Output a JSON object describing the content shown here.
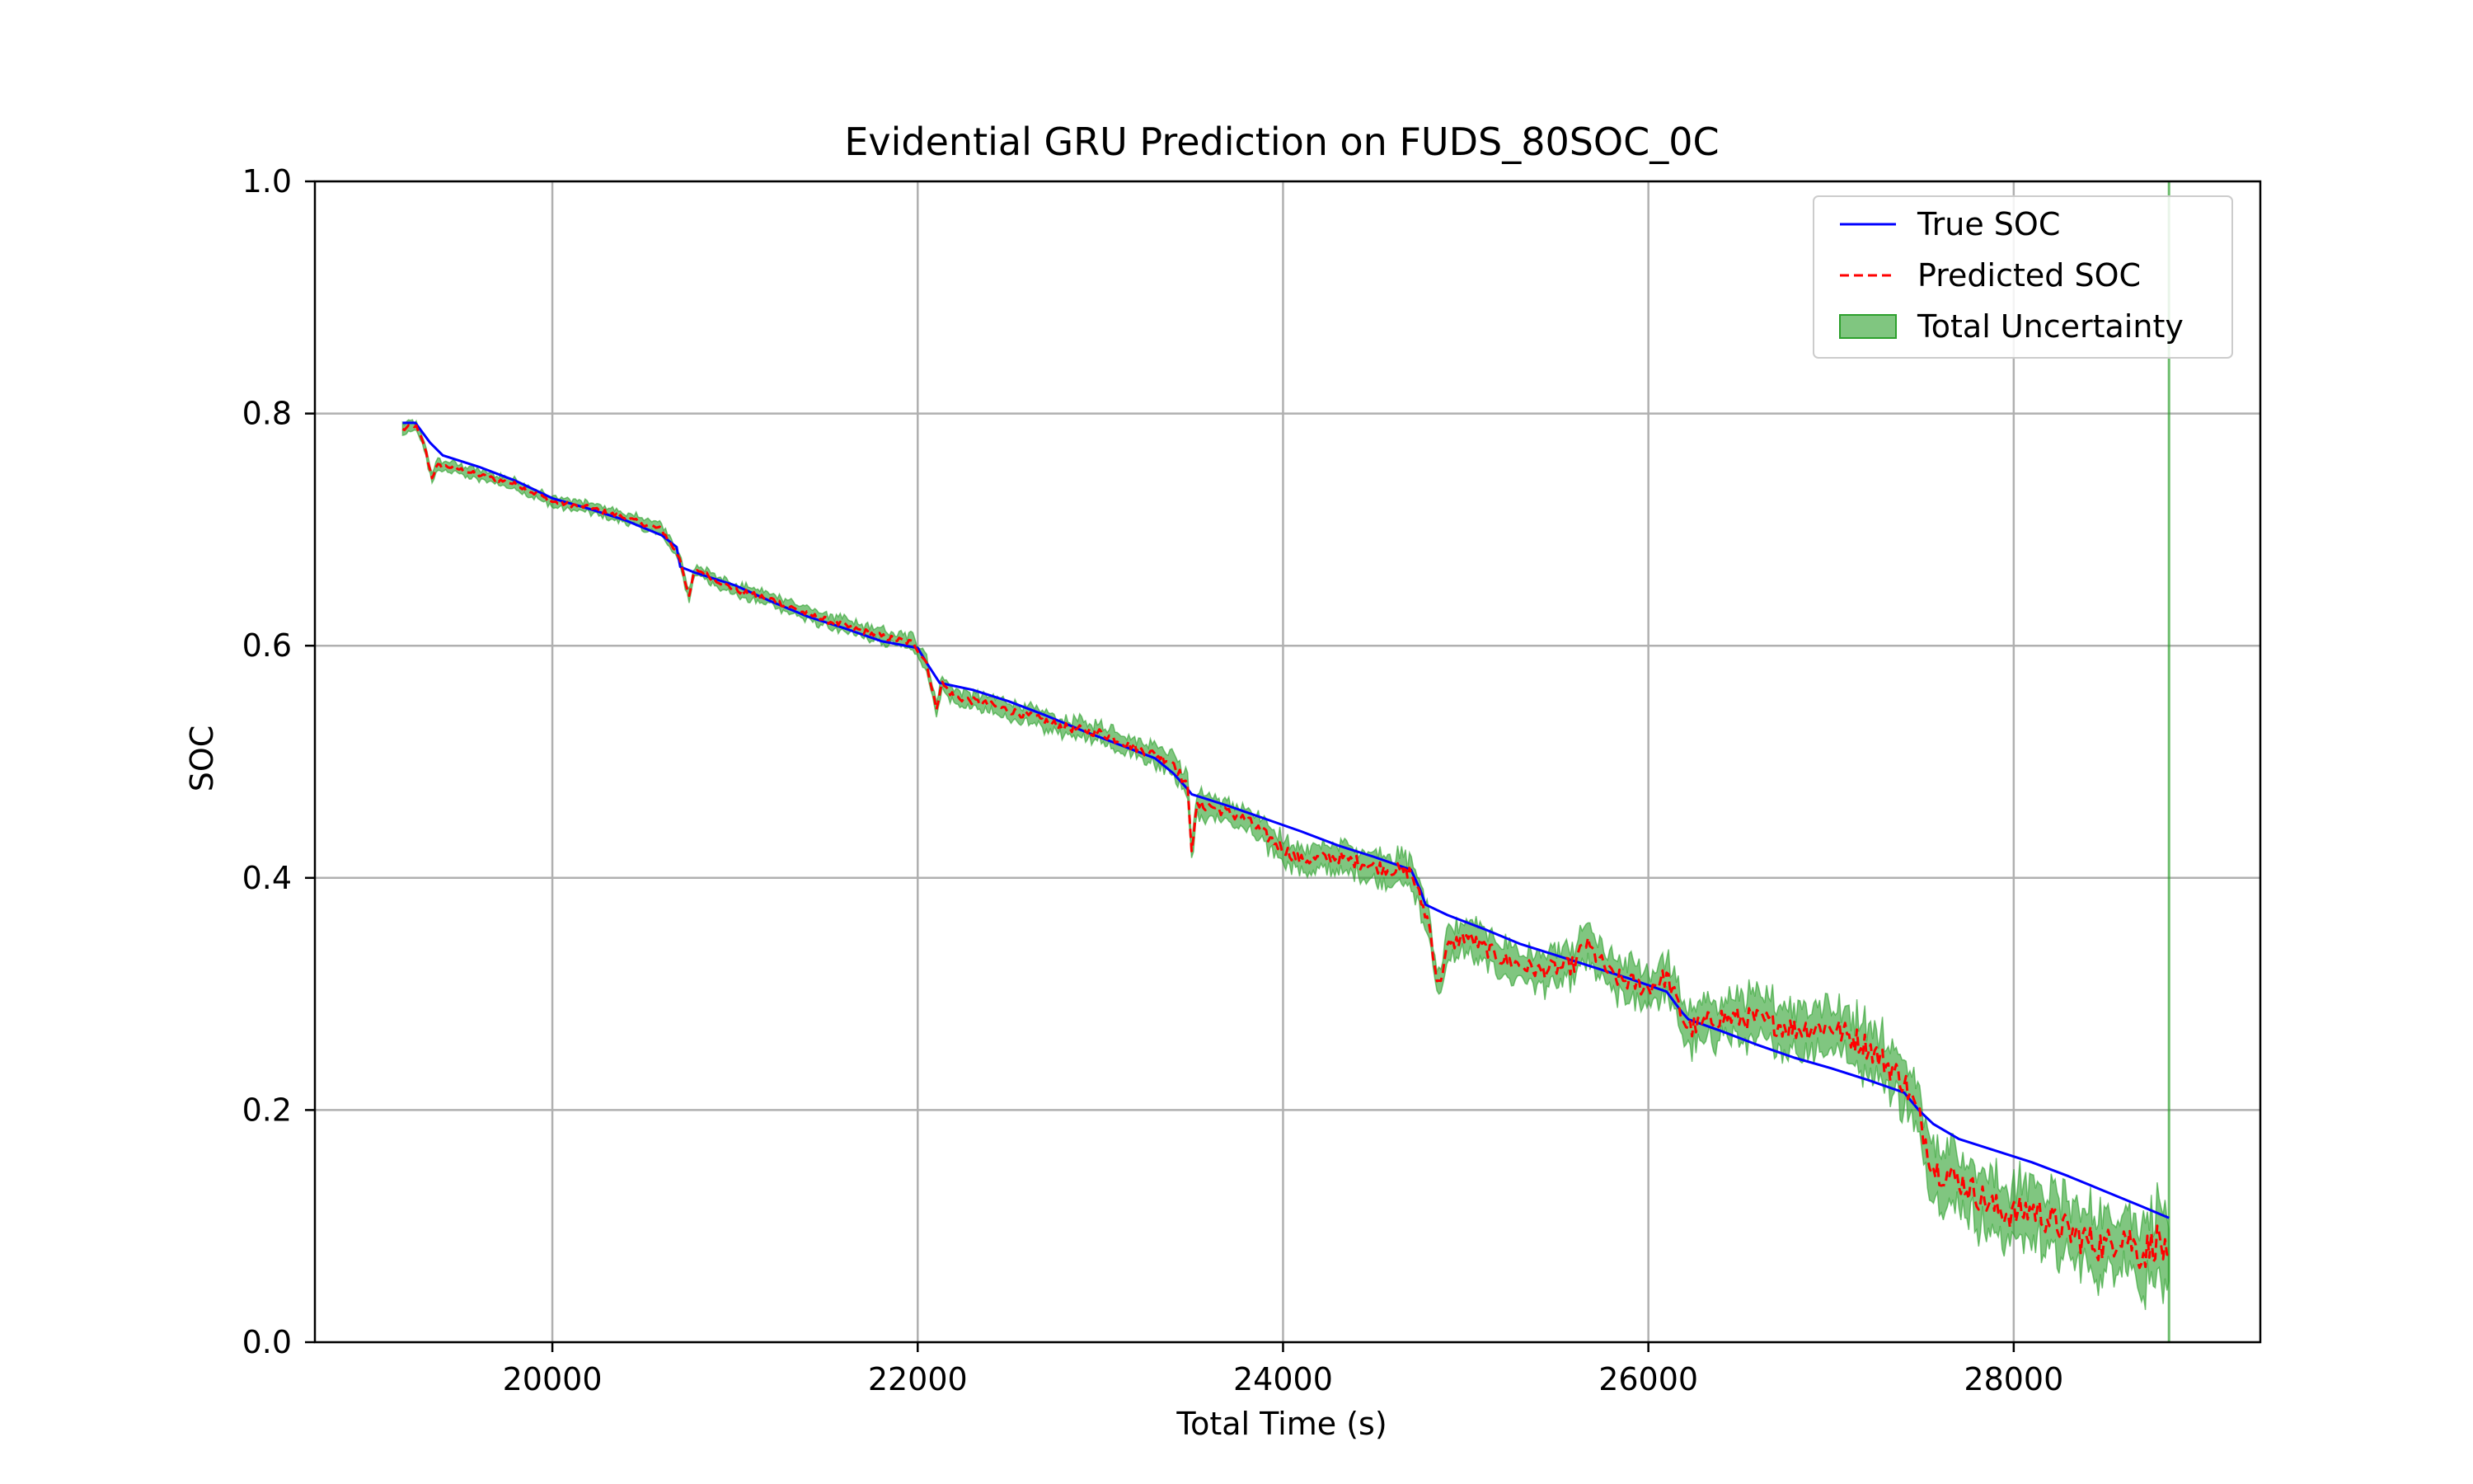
{
  "chart_data": {
    "type": "line",
    "title": "Evidential GRU Prediction on FUDS_80SOC_0C",
    "xlabel": "Total Time (s)",
    "ylabel": "SOC",
    "xlim": [
      18700,
      29350
    ],
    "ylim": [
      0.0,
      1.0
    ],
    "xticks": [
      20000,
      22000,
      24000,
      26000,
      28000
    ],
    "yticks": [
      0.0,
      0.2,
      0.4,
      0.6,
      0.8,
      1.0
    ],
    "xtick_labels": [
      "20000",
      "22000",
      "24000",
      "26000",
      "28000"
    ],
    "ytick_labels": [
      "0.0",
      "0.2",
      "0.4",
      "0.6",
      "0.8",
      "1.0"
    ],
    "grid": true,
    "legend_position": "top-right",
    "colors": {
      "true": "#0000ff",
      "pred": "#ff0000",
      "band": "#2ca02c"
    },
    "series": [
      {
        "name": "True SOC",
        "style": "solid",
        "x": [
          19180,
          19250,
          19330,
          19400,
          19600,
          19800,
          20000,
          20200,
          20400,
          20600,
          20680,
          20700,
          20780,
          21000,
          21200,
          21400,
          21600,
          21800,
          22000,
          22050,
          22120,
          22300,
          22500,
          22700,
          22900,
          23100,
          23300,
          23400,
          23480,
          23500,
          23700,
          23900,
          24100,
          24300,
          24500,
          24700,
          24750,
          24780,
          24900,
          25100,
          25300,
          25500,
          25700,
          25900,
          26100,
          26180,
          26220,
          26400,
          26600,
          26800,
          27000,
          27200,
          27400,
          27480,
          27560,
          27700,
          27900,
          28100,
          28300,
          28500,
          28700,
          28850
        ],
        "y": [
          0.792,
          0.792,
          0.775,
          0.764,
          0.754,
          0.742,
          0.727,
          0.718,
          0.708,
          0.695,
          0.685,
          0.668,
          0.663,
          0.652,
          0.638,
          0.625,
          0.615,
          0.604,
          0.598,
          0.585,
          0.568,
          0.562,
          0.552,
          0.54,
          0.527,
          0.515,
          0.503,
          0.49,
          0.476,
          0.472,
          0.462,
          0.451,
          0.44,
          0.428,
          0.418,
          0.407,
          0.39,
          0.377,
          0.368,
          0.356,
          0.343,
          0.333,
          0.323,
          0.313,
          0.302,
          0.285,
          0.278,
          0.268,
          0.256,
          0.245,
          0.236,
          0.226,
          0.215,
          0.2,
          0.188,
          0.175,
          0.165,
          0.155,
          0.143,
          0.13,
          0.117,
          0.107
        ]
      },
      {
        "name": "Predicted SOC",
        "style": "dashed",
        "x": [
          19180,
          19250,
          19300,
          19340,
          19370,
          19450,
          19600,
          19800,
          20000,
          20200,
          20400,
          20600,
          20700,
          20750,
          20770,
          20800,
          21000,
          21200,
          21400,
          21600,
          21800,
          21980,
          22050,
          22100,
          22130,
          22200,
          22400,
          22600,
          22800,
          23000,
          23200,
          23400,
          23480,
          23500,
          23530,
          23600,
          23800,
          24000,
          24100,
          24300,
          24500,
          24700,
          24800,
          24850,
          24900,
          25000,
          25200,
          25400,
          25600,
          25650,
          25800,
          26000,
          26100,
          26200,
          26230,
          26400,
          26600,
          26800,
          27000,
          27200,
          27400,
          27480,
          27560,
          27700,
          27900,
          28000,
          28100,
          28300,
          28500,
          28600,
          28700,
          28800,
          28850
        ],
        "y": [
          0.786,
          0.79,
          0.772,
          0.745,
          0.755,
          0.754,
          0.747,
          0.739,
          0.724,
          0.719,
          0.71,
          0.7,
          0.675,
          0.64,
          0.66,
          0.665,
          0.648,
          0.64,
          0.627,
          0.617,
          0.608,
          0.602,
          0.585,
          0.545,
          0.568,
          0.556,
          0.549,
          0.54,
          0.53,
          0.525,
          0.512,
          0.5,
          0.476,
          0.425,
          0.462,
          0.462,
          0.45,
          0.425,
          0.415,
          0.418,
          0.41,
          0.405,
          0.36,
          0.305,
          0.34,
          0.35,
          0.33,
          0.32,
          0.325,
          0.345,
          0.315,
          0.305,
          0.315,
          0.275,
          0.27,
          0.28,
          0.278,
          0.27,
          0.272,
          0.255,
          0.225,
          0.195,
          0.15,
          0.14,
          0.115,
          0.11,
          0.115,
          0.095,
          0.082,
          0.095,
          0.075,
          0.09,
          0.06
        ]
      }
    ],
    "band": {
      "name": "Total Uncertainty",
      "x_start": 19180,
      "x_end": 28850,
      "half_width_start": 0.004,
      "half_width_end": 0.028,
      "vertical_line_x": 28850
    }
  }
}
